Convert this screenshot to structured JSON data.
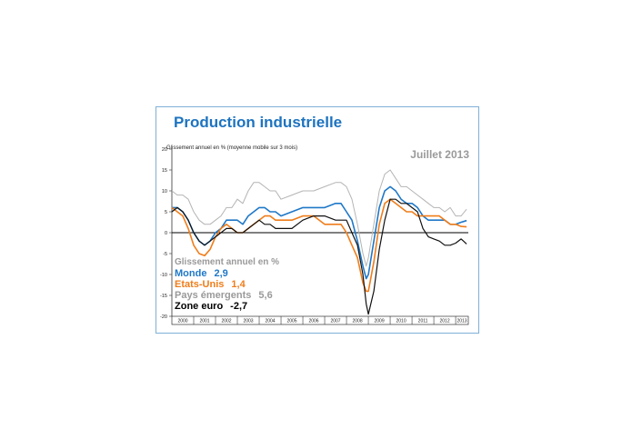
{
  "chart_data": {
    "type": "line",
    "title": "Production industrielle",
    "subtitle": "Glissement annuel en % (moyenne mobile sur 3 mois)",
    "date_label": "Juillet 2013",
    "ylim": [
      -20,
      20
    ],
    "yticks": [
      20,
      15,
      10,
      5,
      0,
      -5,
      -10,
      -15,
      -20
    ],
    "xlim": [
      2000,
      2013.58
    ],
    "xticks": [
      "2000",
      "2001",
      "2002",
      "2003",
      "2004",
      "2005",
      "2006",
      "2007",
      "2008",
      "2009",
      "2010",
      "2011",
      "2012",
      "2013"
    ],
    "grid": false,
    "zero_line": true,
    "legend": {
      "header": "Glissement annuel en %",
      "entries": [
        {
          "label": "Monde",
          "value": "2,9",
          "color": "#1f78c8"
        },
        {
          "label": "Etats-Unis",
          "value": "1,4",
          "color": "#ef7d1a"
        },
        {
          "label": "Pays émergents",
          "value": "5,6",
          "color": "#9a9a9a"
        },
        {
          "label": "Zone euro",
          "value": "-2,7",
          "color": "#000000"
        }
      ]
    },
    "series": [
      {
        "name": "Pays émergents",
        "color": "#b4b4b4",
        "width": 1,
        "x": [
          2000,
          2000.25,
          2000.5,
          2000.75,
          2001,
          2001.25,
          2001.5,
          2001.75,
          2002,
          2002.25,
          2002.5,
          2002.75,
          2003,
          2003.25,
          2003.5,
          2003.75,
          2004,
          2004.25,
          2004.5,
          2004.75,
          2005,
          2005.5,
          2006,
          2006.5,
          2007,
          2007.5,
          2007.75,
          2008,
          2008.25,
          2008.5,
          2008.75,
          2008.9,
          2009,
          2009.25,
          2009.5,
          2009.75,
          2010,
          2010.25,
          2010.5,
          2010.75,
          2011,
          2011.25,
          2011.5,
          2011.75,
          2012,
          2012.25,
          2012.5,
          2012.75,
          2013,
          2013.25,
          2013.5
        ],
        "y": [
          10,
          9,
          9,
          8,
          5,
          3,
          2,
          2,
          3,
          4,
          6,
          6,
          8,
          7,
          10,
          12,
          12,
          11,
          10,
          10,
          8,
          9,
          10,
          10,
          11,
          12,
          12,
          11,
          8,
          2,
          -5,
          -8,
          -6,
          2,
          10,
          14,
          15,
          13,
          11,
          11,
          10,
          9,
          8,
          7,
          6,
          6,
          5,
          6,
          4,
          4,
          5.6
        ]
      },
      {
        "name": "Monde",
        "color": "#1f78c8",
        "width": 1.6,
        "x": [
          2000,
          2000.25,
          2000.5,
          2000.75,
          2001,
          2001.25,
          2001.5,
          2001.75,
          2002,
          2002.25,
          2002.5,
          2002.75,
          2003,
          2003.25,
          2003.5,
          2003.75,
          2004,
          2004.25,
          2004.5,
          2004.75,
          2005,
          2005.5,
          2006,
          2006.5,
          2007,
          2007.5,
          2007.75,
          2008,
          2008.25,
          2008.5,
          2008.75,
          2008.9,
          2009,
          2009.25,
          2009.5,
          2009.75,
          2010,
          2010.25,
          2010.5,
          2010.75,
          2011,
          2011.25,
          2011.5,
          2011.75,
          2012,
          2012.25,
          2012.5,
          2012.75,
          2013,
          2013.25,
          2013.5
        ],
        "y": [
          6,
          6,
          5,
          3,
          0,
          -2,
          -3,
          -2,
          0,
          1,
          3,
          3,
          3,
          2,
          4,
          5,
          6,
          6,
          5,
          5,
          4,
          5,
          6,
          6,
          6,
          7,
          7,
          5,
          3,
          -2,
          -8,
          -11,
          -10,
          -2,
          6,
          10,
          11,
          10,
          8,
          7,
          7,
          6,
          4,
          3,
          3,
          3,
          3,
          2,
          2,
          2.5,
          2.9
        ]
      },
      {
        "name": "Etats-Unis",
        "color": "#ef7d1a",
        "width": 1.6,
        "x": [
          2000,
          2000.25,
          2000.5,
          2000.75,
          2001,
          2001.25,
          2001.5,
          2001.75,
          2002,
          2002.25,
          2002.5,
          2002.75,
          2003,
          2003.25,
          2003.5,
          2003.75,
          2004,
          2004.25,
          2004.5,
          2004.75,
          2005,
          2005.5,
          2006,
          2006.5,
          2007,
          2007.5,
          2007.75,
          2008,
          2008.25,
          2008.5,
          2008.75,
          2008.9,
          2009,
          2009.25,
          2009.5,
          2009.75,
          2010,
          2010.25,
          2010.5,
          2010.75,
          2011,
          2011.25,
          2011.5,
          2011.75,
          2012,
          2012.25,
          2012.5,
          2012.75,
          2013,
          2013.25,
          2013.5
        ],
        "y": [
          6,
          5,
          4,
          1,
          -3,
          -5,
          -5.5,
          -4,
          -1,
          1,
          2,
          1,
          0,
          0,
          1,
          2,
          3,
          4,
          4,
          3,
          3,
          3,
          4,
          4,
          2,
          2,
          2,
          0,
          -3,
          -6,
          -12,
          -14,
          -14,
          -7,
          2,
          7,
          8,
          7,
          6,
          5,
          5,
          4,
          4,
          4,
          4,
          4,
          3,
          2,
          2,
          1.5,
          1.4
        ]
      },
      {
        "name": "Zone euro",
        "color": "#111111",
        "width": 1.2,
        "x": [
          2000,
          2000.25,
          2000.5,
          2000.75,
          2001,
          2001.25,
          2001.5,
          2001.75,
          2002,
          2002.25,
          2002.5,
          2002.75,
          2003,
          2003.25,
          2003.5,
          2003.75,
          2004,
          2004.25,
          2004.5,
          2004.75,
          2005,
          2005.5,
          2006,
          2006.5,
          2007,
          2007.5,
          2007.75,
          2008,
          2008.25,
          2008.5,
          2008.75,
          2008.9,
          2009,
          2009.25,
          2009.5,
          2009.75,
          2010,
          2010.25,
          2010.5,
          2010.75,
          2011,
          2011.25,
          2011.5,
          2011.75,
          2012,
          2012.25,
          2012.5,
          2012.75,
          2013,
          2013.25,
          2013.5
        ],
        "y": [
          5,
          6,
          5,
          3,
          0,
          -2,
          -3,
          -2,
          -1,
          0,
          1,
          1,
          0,
          0,
          1,
          2,
          3,
          2,
          2,
          1,
          1,
          1,
          3,
          4,
          4,
          3,
          3,
          3,
          0,
          -3,
          -10,
          -17,
          -19.5,
          -14,
          -4,
          3,
          8,
          8,
          7,
          7,
          6,
          5,
          1,
          -1,
          -1.5,
          -2,
          -3,
          -3,
          -2.5,
          -1.5,
          -2.7
        ]
      }
    ]
  }
}
